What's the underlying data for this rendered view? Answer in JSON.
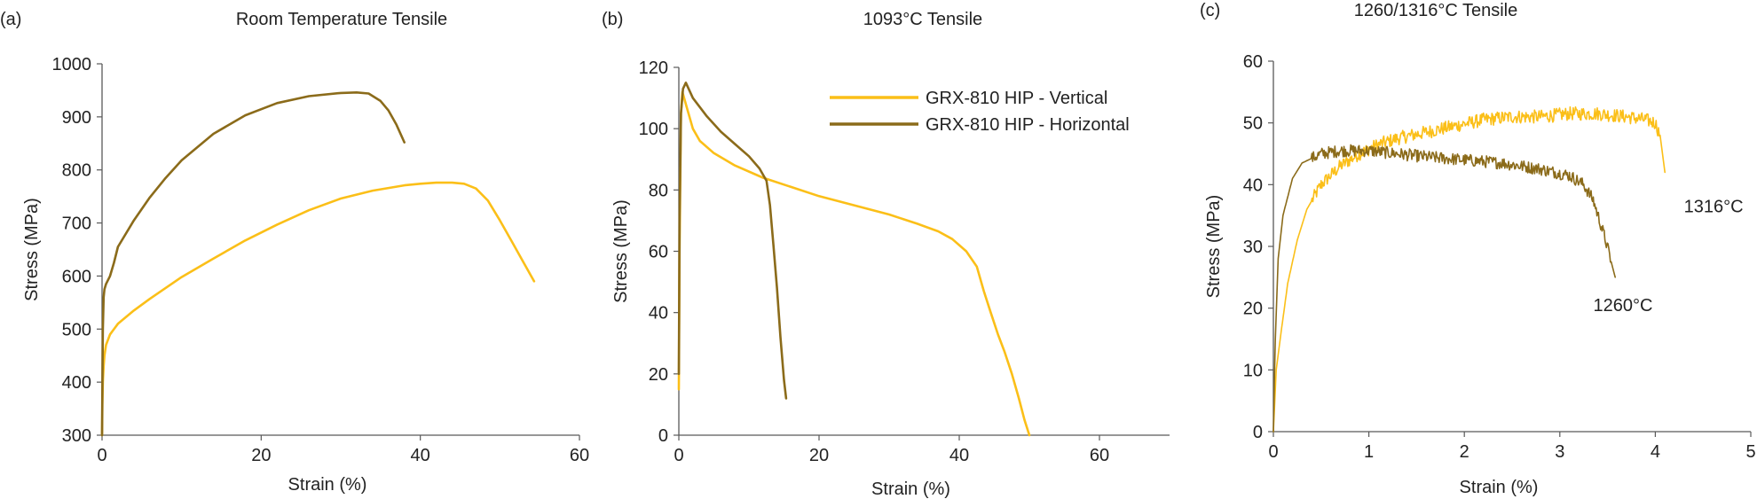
{
  "colors": {
    "vertical": "#fbbf18",
    "horizontal": "#8b6b1a",
    "axis": "#595959"
  },
  "chart_data": [
    {
      "type": "line",
      "panel_label": "(a)",
      "title": "Room Temperature Tensile",
      "xlabel": "Strain (%)",
      "ylabel": "Stress (MPa)",
      "xlim": [
        0,
        60
      ],
      "ylim": [
        300,
        1000
      ],
      "xticks": [
        0,
        20,
        40,
        60
      ],
      "yticks": [
        300,
        400,
        500,
        600,
        700,
        800,
        900,
        1000
      ],
      "series": [
        {
          "key": "vertical",
          "x": [
            0,
            0.05,
            0.1,
            0.2,
            0.3,
            0.5,
            1,
            2,
            4,
            6,
            10,
            14,
            18,
            22,
            26,
            30,
            34,
            38,
            40,
            42,
            44,
            45.5,
            47,
            48.5,
            50,
            51.5,
            53,
            54.3
          ],
          "y": [
            300,
            360,
            400,
            430,
            450,
            470,
            490,
            510,
            535,
            557,
            598,
            633,
            667,
            697,
            724,
            746,
            761,
            771,
            774,
            776,
            776,
            774,
            765,
            742,
            705,
            665,
            625,
            590
          ]
        },
        {
          "key": "horizontal",
          "x": [
            0,
            0.05,
            0.1,
            0.2,
            0.3,
            0.5,
            1,
            1.5,
            2,
            4,
            6,
            8,
            10,
            14,
            18,
            22,
            26,
            30,
            32,
            33.5,
            35,
            36,
            37,
            38
          ],
          "y": [
            300,
            400,
            500,
            560,
            575,
            585,
            600,
            625,
            655,
            705,
            748,
            785,
            818,
            868,
            903,
            926,
            939,
            945,
            946,
            944,
            930,
            912,
            885,
            852
          ]
        }
      ]
    },
    {
      "type": "line",
      "panel_label": "(b)",
      "title": "1093°C Tensile",
      "xlabel": "Strain (%)",
      "ylabel": "Stress (MPa)",
      "xlim": [
        0,
        70
      ],
      "ylim": [
        0,
        120
      ],
      "xticks": [
        0,
        20,
        40,
        60
      ],
      "yticks": [
        0,
        20,
        40,
        60,
        80,
        100,
        120
      ],
      "legend_position": "top-right",
      "legend": [
        {
          "key": "vertical",
          "label": "GRX-810 HIP - Vertical"
        },
        {
          "key": "horizontal",
          "label": "GRX-810 HIP - Horizontal"
        }
      ],
      "series": [
        {
          "key": "vertical",
          "x": [
            0,
            0.1,
            0.3,
            0.5,
            1,
            2,
            3,
            5,
            8,
            12,
            16,
            20,
            25,
            30,
            34,
            37,
            39,
            41,
            42.5,
            43.5,
            44.5,
            45.5,
            46.5,
            47.5,
            48.5,
            49.3,
            50
          ],
          "y": [
            15,
            60,
            105,
            112,
            108,
            100,
            96,
            92,
            88,
            84,
            81,
            78,
            75,
            72,
            69,
            66.5,
            64,
            60,
            55,
            47,
            40,
            33,
            27,
            20,
            12,
            5,
            0
          ]
        },
        {
          "key": "horizontal",
          "x": [
            0,
            0.1,
            0.3,
            0.6,
            1,
            2,
            4,
            6,
            8,
            10,
            11.5,
            12.5,
            13,
            13.5,
            14,
            14.5,
            15,
            15.3
          ],
          "y": [
            20,
            70,
            105,
            113,
            115,
            110,
            104,
            99,
            95,
            91,
            87,
            83,
            75,
            62,
            48,
            32,
            18,
            12
          ]
        }
      ]
    },
    {
      "type": "line",
      "panel_label": "(c)",
      "title": "1260/1316°C Tensile",
      "xlabel": "Strain (%)",
      "ylabel": "Stress (MPa)",
      "xlim": [
        0,
        5
      ],
      "ylim": [
        0,
        60
      ],
      "xticks": [
        0,
        1,
        2,
        3,
        4,
        5
      ],
      "yticks": [
        0,
        10,
        20,
        30,
        40,
        50,
        60
      ],
      "annotations": [
        {
          "text": "1316°C",
          "x": 4.3,
          "y": 35.5
        },
        {
          "text": "1260°C",
          "x": 3.35,
          "y": 19.5
        }
      ],
      "series": [
        {
          "key": "vertical",
          "noise": 1.1,
          "x": [
            0,
            0.03,
            0.08,
            0.15,
            0.25,
            0.35,
            0.5,
            0.7,
            0.9,
            1.1,
            1.3,
            1.6,
            1.9,
            2.2,
            2.5,
            2.8,
            3.1,
            3.4,
            3.7,
            3.9,
            4.0,
            4.05,
            4.1
          ],
          "y": [
            0,
            10,
            16,
            24,
            31,
            36,
            40,
            43,
            45,
            46.5,
            47.5,
            48.5,
            49.5,
            50.5,
            51,
            51,
            51.5,
            51.5,
            51,
            50.5,
            50,
            48,
            42
          ]
        },
        {
          "key": "horizontal",
          "noise": 1.0,
          "x": [
            0,
            0.02,
            0.05,
            0.1,
            0.2,
            0.3,
            0.5,
            0.7,
            1.0,
            1.3,
            1.6,
            2.0,
            2.4,
            2.8,
            3.1,
            3.25,
            3.35,
            3.42,
            3.48,
            3.53,
            3.58
          ],
          "y": [
            0,
            15,
            28,
            35,
            41,
            43.5,
            45,
            45.5,
            45.5,
            45,
            44.5,
            44,
            43.5,
            42.5,
            41.5,
            40,
            37.5,
            34,
            31,
            28,
            25
          ]
        }
      ]
    }
  ]
}
